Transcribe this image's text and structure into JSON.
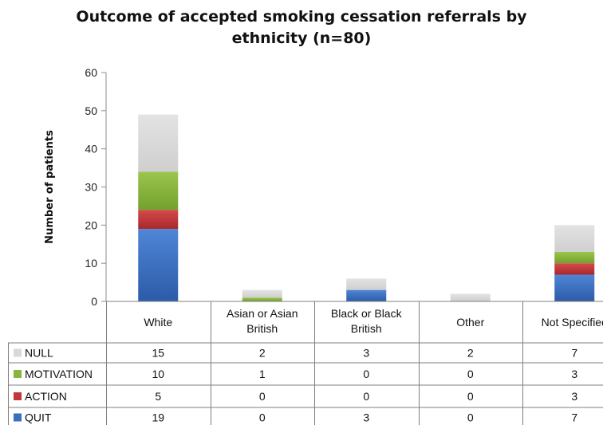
{
  "chart_data": {
    "type": "bar",
    "stacked": true,
    "title_lines": [
      "Outcome of accepted smoking cessation referrals by",
      "ethnicity (n=80)"
    ],
    "ylabel": "Number of patients",
    "ylim": [
      0,
      60
    ],
    "yticks": [
      "0",
      "10",
      "20",
      "30",
      "40",
      "50",
      "60"
    ],
    "grid": false,
    "categories": [
      [
        "White"
      ],
      [
        "Asian or Asian",
        "British"
      ],
      [
        "Black or Black",
        "British"
      ],
      [
        "Other"
      ],
      [
        "Not Specified"
      ]
    ],
    "series": [
      {
        "name": "QUIT",
        "color": "#3a6fc0",
        "values": [
          19,
          0,
          3,
          0,
          7
        ]
      },
      {
        "name": "ACTION",
        "color": "#c0383a",
        "values": [
          5,
          0,
          0,
          0,
          3
        ]
      },
      {
        "name": "MOTIVATION",
        "color": "#88b53c",
        "values": [
          10,
          1,
          0,
          0,
          3
        ]
      },
      {
        "name": "NULL",
        "color": "#d9d9d9",
        "values": [
          15,
          2,
          3,
          2,
          7
        ]
      }
    ],
    "table_row_order": [
      "NULL",
      "MOTIVATION",
      "ACTION",
      "QUIT"
    ],
    "legend_placement": "data-table-left"
  }
}
